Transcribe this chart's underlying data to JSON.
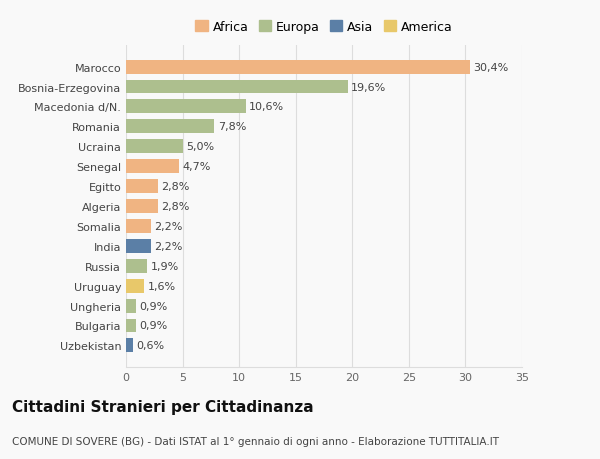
{
  "countries": [
    "Marocco",
    "Bosnia-Erzegovina",
    "Macedonia d/N.",
    "Romania",
    "Ucraina",
    "Senegal",
    "Egitto",
    "Algeria",
    "Somalia",
    "India",
    "Russia",
    "Uruguay",
    "Ungheria",
    "Bulgaria",
    "Uzbekistan"
  ],
  "values": [
    30.4,
    19.6,
    10.6,
    7.8,
    5.0,
    4.7,
    2.8,
    2.8,
    2.2,
    2.2,
    1.9,
    1.6,
    0.9,
    0.9,
    0.6
  ],
  "labels": [
    "30,4%",
    "19,6%",
    "10,6%",
    "7,8%",
    "5,0%",
    "4,7%",
    "2,8%",
    "2,8%",
    "2,2%",
    "2,2%",
    "1,9%",
    "1,6%",
    "0,9%",
    "0,9%",
    "0,6%"
  ],
  "continents": [
    "Africa",
    "Europa",
    "Europa",
    "Europa",
    "Europa",
    "Africa",
    "Africa",
    "Africa",
    "Africa",
    "Asia",
    "Europa",
    "America",
    "Europa",
    "Europa",
    "Asia"
  ],
  "colors": {
    "Africa": "#F0B482",
    "Europa": "#ADBF8E",
    "Asia": "#5B7FA6",
    "America": "#E8C86A"
  },
  "legend_order": [
    "Africa",
    "Europa",
    "Asia",
    "America"
  ],
  "xlim": [
    0,
    35
  ],
  "xticks": [
    0,
    5,
    10,
    15,
    20,
    25,
    30,
    35
  ],
  "title": "Cittadini Stranieri per Cittadinanza",
  "subtitle": "COMUNE DI SOVERE (BG) - Dati ISTAT al 1° gennaio di ogni anno - Elaborazione TUTTITALIA.IT",
  "background_color": "#f9f9f9",
  "bar_height": 0.7,
  "grid_color": "#dddddd",
  "title_fontsize": 11,
  "subtitle_fontsize": 7.5,
  "label_fontsize": 8,
  "tick_fontsize": 8,
  "legend_fontsize": 9
}
